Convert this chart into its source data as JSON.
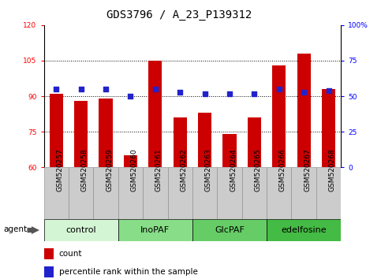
{
  "title": "GDS3796 / A_23_P139312",
  "samples": [
    "GSM520257",
    "GSM520258",
    "GSM520259",
    "GSM520260",
    "GSM520261",
    "GSM520262",
    "GSM520263",
    "GSM520264",
    "GSM520265",
    "GSM520266",
    "GSM520267",
    "GSM520268"
  ],
  "bar_values": [
    91,
    88,
    89,
    65,
    105,
    81,
    83,
    74,
    81,
    103,
    108,
    93
  ],
  "dot_values": [
    55,
    55,
    55,
    50,
    55,
    53,
    52,
    52,
    52,
    55,
    53,
    54
  ],
  "bar_color": "#cc0000",
  "dot_color": "#2222cc",
  "ylim_left": [
    60,
    120
  ],
  "ylim_right": [
    0,
    100
  ],
  "yticks_left": [
    60,
    75,
    90,
    105,
    120
  ],
  "yticks_right": [
    0,
    25,
    50,
    75,
    100
  ],
  "ytick_labels_right": [
    "0",
    "25",
    "50",
    "75",
    "100%"
  ],
  "hlines": [
    75,
    90,
    105
  ],
  "groups": [
    {
      "label": "control",
      "start": 0,
      "end": 3,
      "color": "#d4f5d4"
    },
    {
      "label": "InoPAF",
      "start": 3,
      "end": 6,
      "color": "#88dd88"
    },
    {
      "label": "GlcPAF",
      "start": 6,
      "end": 9,
      "color": "#66cc66"
    },
    {
      "label": "edelfosine",
      "start": 9,
      "end": 12,
      "color": "#44bb44"
    }
  ],
  "agent_label": "agent",
  "legend_count_label": "count",
  "legend_pct_label": "percentile rank within the sample",
  "title_fontsize": 10,
  "tick_fontsize": 6.5,
  "label_fontsize": 7.5,
  "group_fontsize": 8,
  "xticklabel_bg": "#cccccc",
  "xticklabel_border": "#888888"
}
